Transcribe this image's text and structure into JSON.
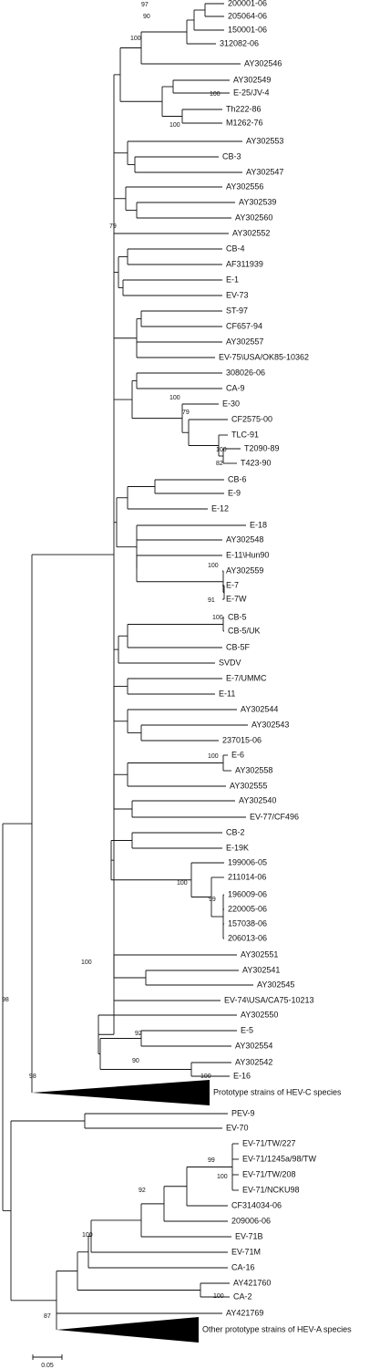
{
  "leaves": [
    "200001-06",
    "205064-06",
    "150001-06",
    "312082-06",
    "AY302546",
    "AY302549",
    "E-25/JV-4",
    "Th222-86",
    "M1262-76",
    "AY302553",
    "CB-3",
    "AY302547",
    "AY302556",
    "AY302539",
    "AY302560",
    "AY302552",
    "CB-4",
    "AF311939",
    "E-1",
    "EV-73",
    "ST-97",
    "CF657-94",
    "AY302557",
    "EV-75\\USA/OK85-10362",
    "308026-06",
    "CA-9",
    "E-30",
    "CF2575-00",
    "TLC-91",
    "T2090-89",
    "T423-90",
    "CB-6",
    "E-9",
    "E-12",
    "E-18",
    "AY302548",
    "E-11\\Hun90",
    "AY302559",
    "E-7",
    "E-7W",
    "CB-5",
    "CB-5/UK",
    "CB-5F",
    "SVDV",
    "E-7/UMMC",
    "E-11",
    "AY302544",
    "AY302543",
    "237015-06",
    "E-6",
    "AY302558",
    "AY302555",
    "AY302540",
    "EV-77/CF496",
    "CB-2",
    "E-19K",
    "199006-05",
    "211014-06",
    "196009-06",
    "220005-06",
    "157038-06",
    "206013-06",
    "AY302551",
    "AY302541",
    "AY302545",
    "EV-74\\USA/CA75-10213",
    "AY302550",
    "E-5",
    "AY302554",
    "AY302542",
    "E-16",
    "Prototype strains of HEV-C species",
    "PEV-9",
    "EV-70",
    "EV-71/TW/227",
    "EV-71/1245a/98/TW",
    "EV-71/TW/208",
    "EV-71/NCKU98",
    "CF314034-06",
    "209006-06",
    "EV-71B",
    "EV-71M",
    "CA-16",
    "AY421760",
    "CA-2",
    "AY421769",
    "Other prototype strains of HEV-A species"
  ],
  "bootstraps": [
    "97",
    "90",
    "100",
    "100",
    "100",
    "79",
    "100",
    "79",
    "100",
    "82",
    "100",
    "91",
    "100",
    "100",
    "100",
    "99",
    "100",
    "98",
    "92",
    "90",
    "100",
    "98",
    "99",
    "100",
    "92",
    "100",
    "100",
    "87"
  ],
  "scale_label": "0.05"
}
